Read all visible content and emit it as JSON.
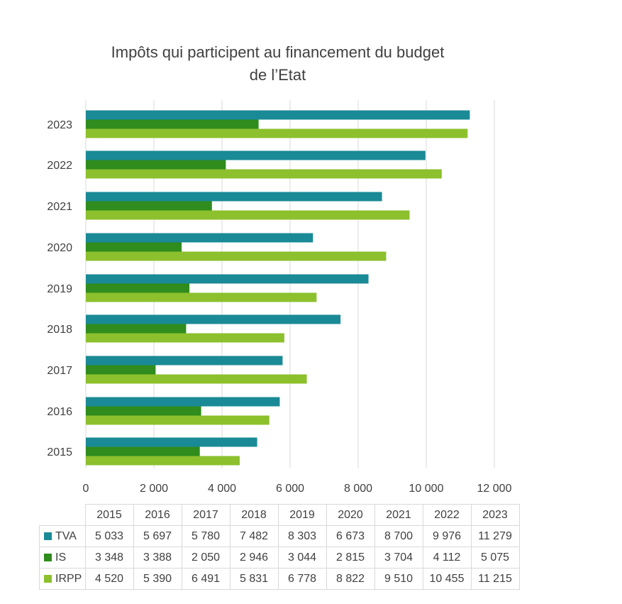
{
  "chart_data": {
    "type": "bar",
    "orientation": "horizontal",
    "title": "Impôts qui participent au financement du budget de l’Etat",
    "title_lines": [
      "Impôts qui participent au financement du budget",
      "de l’Etat"
    ],
    "categories": [
      "2015",
      "2016",
      "2017",
      "2018",
      "2019",
      "2020",
      "2021",
      "2022",
      "2023"
    ],
    "series": [
      {
        "name": "TVA",
        "color": "#1a8a96",
        "values": [
          5033,
          5697,
          5780,
          7482,
          8303,
          6673,
          8700,
          9976,
          11279
        ],
        "labels": [
          "5 033",
          "5 697",
          "5 780",
          "7 482",
          "8 303",
          "6 673",
          "8 700",
          "9 976",
          "11 279"
        ]
      },
      {
        "name": "IS",
        "color": "#2f8c1d",
        "values": [
          3348,
          3388,
          2050,
          2946,
          3044,
          2815,
          3704,
          4112,
          5075
        ],
        "labels": [
          "3 348",
          "3 388",
          "2 050",
          "2 946",
          "3 044",
          "2 815",
          "3 704",
          "4 112",
          "5 075"
        ]
      },
      {
        "name": "IRPP",
        "color": "#8cc02d",
        "values": [
          4520,
          5390,
          6491,
          5831,
          6778,
          8822,
          9510,
          10455,
          11215
        ],
        "labels": [
          "4 520",
          "5 390",
          "6 491",
          "5 831",
          "6 778",
          "8 822",
          "9 510",
          "10 455",
          "11 215"
        ]
      }
    ],
    "xlim": [
      0,
      12000
    ],
    "xticks": [
      0,
      2000,
      4000,
      6000,
      8000,
      10000,
      12000
    ],
    "xtick_labels": [
      "0",
      "2 000",
      "4 000",
      "6 000",
      "8 000",
      "10 000",
      "12 000"
    ],
    "grid": "vertical",
    "legend": "data table below chart"
  }
}
